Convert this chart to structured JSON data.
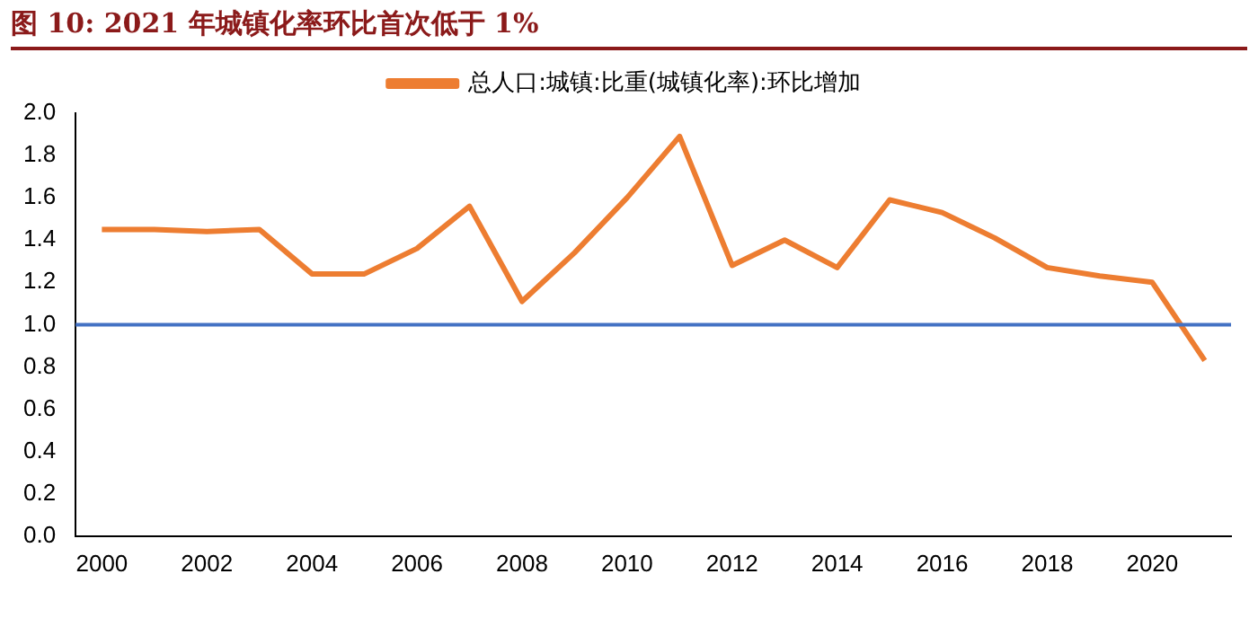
{
  "chart_data": {
    "type": "line",
    "title": "图 10: 2021 年城镇化率环比首次低于 1%",
    "categories": [
      "2000",
      null,
      "2002",
      null,
      "2004",
      null,
      "2006",
      null,
      "2008",
      null,
      "2010",
      null,
      "2012",
      null,
      "2014",
      null,
      "2016",
      null,
      "2018",
      null,
      "2020",
      null
    ],
    "series": [
      {
        "name": "总人口:城镇:比重(城镇化率):环比增加",
        "color": "#ed7d31",
        "values": [
          1.45,
          1.45,
          1.44,
          1.45,
          1.24,
          1.24,
          1.36,
          1.56,
          1.11,
          1.34,
          1.6,
          1.89,
          1.28,
          1.4,
          1.27,
          1.59,
          1.53,
          1.41,
          1.27,
          1.23,
          1.2,
          0.83
        ]
      }
    ],
    "ylim": [
      0,
      2
    ],
    "yticks": [
      {
        "value": 0,
        "label": "0.0"
      },
      {
        "value": 0.2,
        "label": "0.2"
      },
      {
        "value": 0.4,
        "label": "0.4"
      },
      {
        "value": 0.6,
        "label": "0.6"
      },
      {
        "value": 0.8,
        "label": "0.8"
      },
      {
        "value": 1,
        "label": "1.0"
      },
      {
        "value": 1.2,
        "label": "1.2"
      },
      {
        "value": 1.4,
        "label": "1.4"
      },
      {
        "value": 1.6,
        "label": "1.6"
      },
      {
        "value": 1.8,
        "label": "1.8"
      },
      {
        "value": 2,
        "label": "2.0"
      }
    ],
    "ref_lines": [
      {
        "axis": "y",
        "value": 1,
        "color": "#4472c4"
      }
    ],
    "legend": "top",
    "grid": false,
    "marker": "none",
    "line_style": "solid"
  }
}
